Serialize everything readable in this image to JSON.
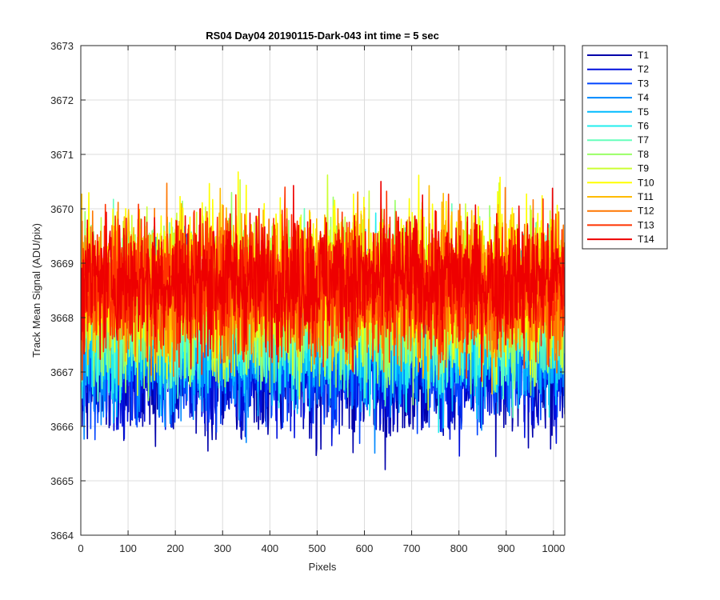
{
  "chart_data": {
    "type": "line",
    "title": "RS04 Day04 20190115-Dark-043 int time = 5 sec",
    "xlabel": "Pixels",
    "ylabel": "Track Mean Signal (ADU/pix)",
    "xlim": [
      0,
      1024
    ],
    "ylim": [
      3664,
      3673
    ],
    "x_ticks": [
      0,
      100,
      200,
      300,
      400,
      500,
      600,
      700,
      800,
      900,
      1000
    ],
    "y_ticks": [
      3664,
      3665,
      3666,
      3667,
      3668,
      3669,
      3670,
      3671,
      3672,
      3673
    ],
    "grid": true,
    "legend_position": "outside top-right",
    "x_range": [
      1,
      1024
    ],
    "series": [
      {
        "name": "T1",
        "color": "#0000AA",
        "mean": 3667.0,
        "spread": 0.85
      },
      {
        "name": "T2",
        "color": "#0010DD",
        "mean": 3667.2,
        "spread": 0.9
      },
      {
        "name": "T3",
        "color": "#0044FF",
        "mean": 3667.4,
        "spread": 0.9
      },
      {
        "name": "T4",
        "color": "#0088FF",
        "mean": 3667.6,
        "spread": 0.95
      },
      {
        "name": "T5",
        "color": "#00BBFF",
        "mean": 3667.8,
        "spread": 0.95
      },
      {
        "name": "T6",
        "color": "#22EEEE",
        "mean": 3668.0,
        "spread": 1.0
      },
      {
        "name": "T7",
        "color": "#66FFBB",
        "mean": 3668.1,
        "spread": 1.0
      },
      {
        "name": "T8",
        "color": "#99FF66",
        "mean": 3668.3,
        "spread": 1.0
      },
      {
        "name": "T9",
        "color": "#CCFF33",
        "mean": 3668.5,
        "spread": 1.0
      },
      {
        "name": "T10",
        "color": "#FFFF00",
        "mean": 3668.7,
        "spread": 1.0
      },
      {
        "name": "T11",
        "color": "#FFBB00",
        "mean": 3668.6,
        "spread": 0.95
      },
      {
        "name": "T12",
        "color": "#FF7700",
        "mean": 3668.5,
        "spread": 0.95
      },
      {
        "name": "T13",
        "color": "#FF3300",
        "mean": 3668.6,
        "spread": 0.9
      },
      {
        "name": "T14",
        "color": "#EE0000",
        "mean": 3668.7,
        "spread": 0.85
      }
    ]
  }
}
